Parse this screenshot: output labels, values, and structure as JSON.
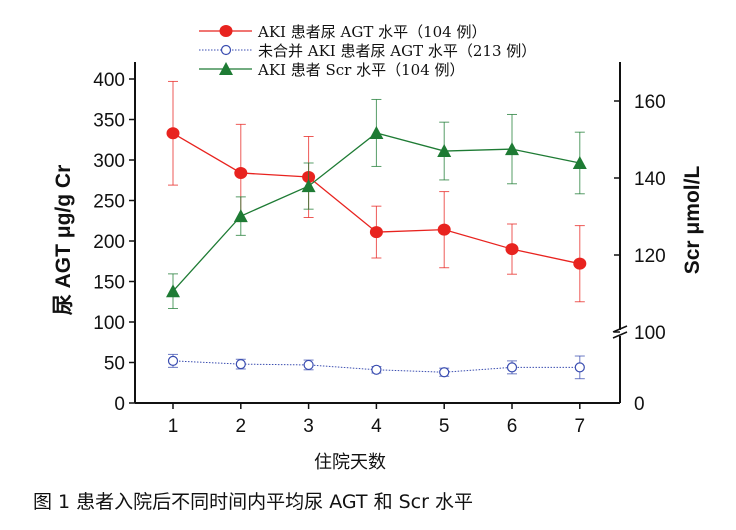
{
  "chart_data": {
    "type": "line",
    "title": "",
    "caption": "图 1  患者入院后不同时间内平均尿 AGT 和 Scr 水平",
    "xlabel": "住院天数",
    "ylabel_left": "尿 AGT  μg/g Cr",
    "ylabel_right": "Scr  μmol/L",
    "x": [
      1,
      2,
      3,
      4,
      5,
      6,
      7
    ],
    "x_ticks": [
      "1",
      "2",
      "3",
      "4",
      "5",
      "6",
      "7"
    ],
    "ylim_left": [
      0,
      400
    ],
    "yticks_left": [
      "0",
      "50",
      "100",
      "150",
      "200",
      "250",
      "300",
      "350",
      "400"
    ],
    "ylim_right_segments": [
      [
        0,
        100
      ],
      [
        100,
        165
      ]
    ],
    "yticks_right": [
      "0",
      "100",
      "120",
      "140",
      "160"
    ],
    "right_axis_break": true,
    "grid": false,
    "legend_position": "top",
    "series": [
      {
        "name": "AKI 患者尿 AGT 水平（104 例）",
        "axis": "left",
        "color": "#e8231f",
        "marker": "filled-circle",
        "values": [
          333,
          284,
          279,
          211,
          214,
          190,
          172
        ],
        "errors": [
          64,
          60,
          50,
          32,
          47,
          31,
          47
        ]
      },
      {
        "name": "未合并 AKI 患者尿 AGT 水平（213 例）",
        "axis": "left",
        "color": "#3a4db0",
        "marker": "open-circle",
        "line": "dotted",
        "values": [
          52,
          48,
          47,
          41,
          38,
          44,
          44
        ],
        "errors": [
          8,
          6,
          6,
          4,
          5,
          8,
          14
        ]
      },
      {
        "name": "AKI 患者 Scr 水平（104 例）",
        "axis": "right",
        "color": "#1e7b34",
        "marker": "filled-triangle",
        "values": [
          110.6,
          130.1,
          137.9,
          151.7,
          147.0,
          147.5,
          143.9
        ],
        "errors": [
          4.5,
          5,
          6,
          8.7,
          7.5,
          9,
          8
        ]
      }
    ]
  }
}
